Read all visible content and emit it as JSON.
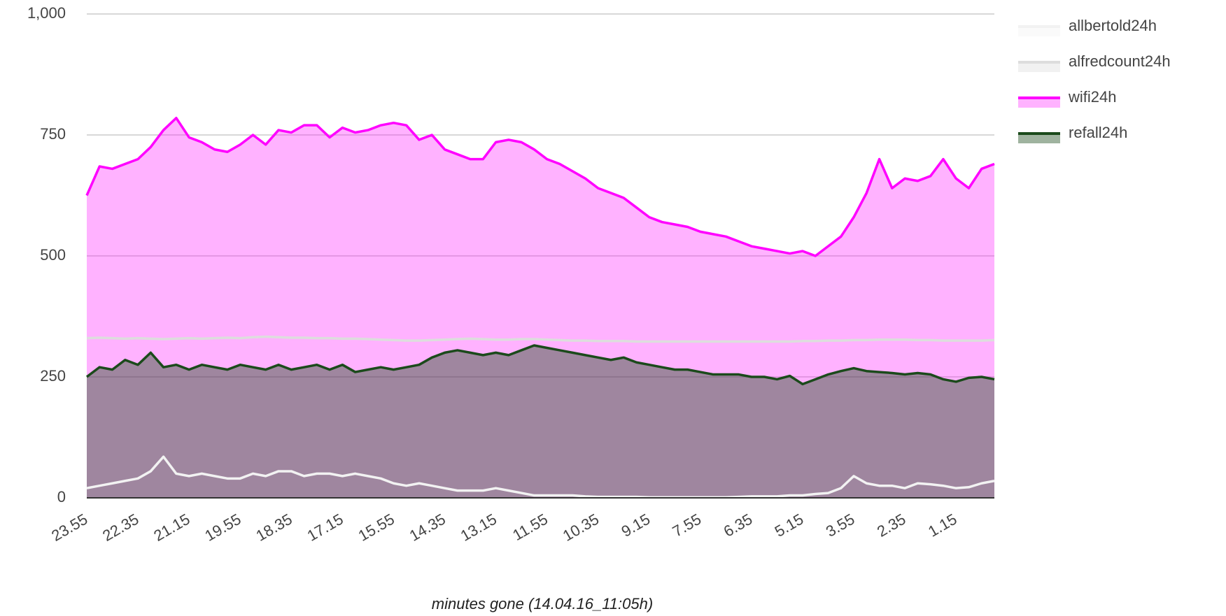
{
  "chart_data": {
    "type": "area",
    "x_label": "minutes gone (14.04.16_11:05h)",
    "categories": [
      "23.55",
      null,
      null,
      null,
      "22.35",
      null,
      null,
      null,
      "21.15",
      null,
      null,
      null,
      "19.55",
      null,
      null,
      null,
      "18.35",
      null,
      null,
      null,
      "17.15",
      null,
      null,
      null,
      "15.55",
      null,
      null,
      null,
      "14.35",
      null,
      null,
      null,
      "13.15",
      null,
      null,
      null,
      "11.55",
      null,
      null,
      null,
      "10.35",
      null,
      null,
      null,
      "9.15",
      null,
      null,
      null,
      "7.55",
      null,
      null,
      null,
      "6.35",
      null,
      null,
      null,
      "5.15",
      null,
      null,
      null,
      "3.55",
      null,
      null,
      null,
      "2.35",
      null,
      null,
      null,
      "1.15",
      null,
      null,
      null
    ],
    "ylim": [
      0,
      1000
    ],
    "yticks": [
      0,
      250,
      500,
      750,
      {
        "value": 1000,
        "label": "1,000"
      }
    ],
    "grid": true,
    "legend": "right",
    "series": [
      {
        "name": "allbertold24h",
        "color": "#f2f2f2",
        "filled": false,
        "values": [
          20,
          25,
          30,
          35,
          40,
          55,
          85,
          50,
          45,
          50,
          45,
          40,
          40,
          50,
          45,
          55,
          55,
          45,
          50,
          50,
          45,
          50,
          45,
          40,
          30,
          25,
          30,
          25,
          20,
          15,
          15,
          15,
          20,
          15,
          10,
          5,
          5,
          5,
          5,
          3,
          2,
          2,
          2,
          2,
          1,
          1,
          1,
          1,
          1,
          1,
          1,
          2,
          3,
          3,
          3,
          5,
          5,
          8,
          10,
          20,
          45,
          30,
          25,
          25,
          20,
          30,
          28,
          25,
          20,
          22,
          30,
          35
        ]
      },
      {
        "name": "alfredcount24h",
        "color": "#dddddd",
        "filled": false,
        "values": [
          330,
          331,
          330,
          329,
          330,
          329,
          328,
          329,
          330,
          329,
          330,
          331,
          330,
          332,
          333,
          332,
          331,
          331,
          330,
          330,
          329,
          329,
          328,
          327,
          326,
          325,
          325,
          326,
          327,
          328,
          329,
          328,
          327,
          327,
          328,
          328,
          327,
          326,
          325,
          325,
          324,
          324,
          324,
          323,
          323,
          323,
          323,
          323,
          323,
          323,
          323,
          323,
          323,
          323,
          323,
          323,
          324,
          324,
          325,
          325,
          326,
          326,
          327,
          327,
          327,
          326,
          326,
          325,
          325,
          325,
          325,
          326
        ]
      },
      {
        "name": "wifi24h",
        "color": "#ff00ff",
        "filled": true,
        "values": [
          625,
          685,
          680,
          690,
          700,
          725,
          760,
          785,
          745,
          735,
          720,
          715,
          730,
          750,
          730,
          760,
          755,
          770,
          770,
          745,
          765,
          755,
          760,
          770,
          775,
          770,
          740,
          750,
          720,
          710,
          700,
          700,
          735,
          740,
          735,
          720,
          700,
          690,
          675,
          660,
          640,
          630,
          620,
          600,
          580,
          570,
          565,
          560,
          550,
          545,
          540,
          530,
          520,
          515,
          510,
          505,
          510,
          500,
          520,
          540,
          580,
          630,
          700,
          640,
          660,
          655,
          665,
          700,
          660,
          640,
          680,
          690
        ]
      },
      {
        "name": "refall24h",
        "color": "#1b4a1b",
        "filled": true,
        "values": [
          250,
          270,
          265,
          285,
          275,
          300,
          270,
          275,
          265,
          275,
          270,
          265,
          275,
          270,
          265,
          275,
          265,
          270,
          275,
          265,
          275,
          260,
          265,
          270,
          265,
          270,
          275,
          290,
          300,
          305,
          300,
          295,
          300,
          295,
          305,
          315,
          310,
          305,
          300,
          295,
          290,
          285,
          290,
          280,
          275,
          270,
          265,
          265,
          260,
          255,
          255,
          255,
          250,
          250,
          245,
          252,
          235,
          245,
          255,
          262,
          268,
          262,
          260,
          258,
          255,
          258,
          255,
          245,
          240,
          248,
          250,
          245
        ]
      }
    ]
  }
}
